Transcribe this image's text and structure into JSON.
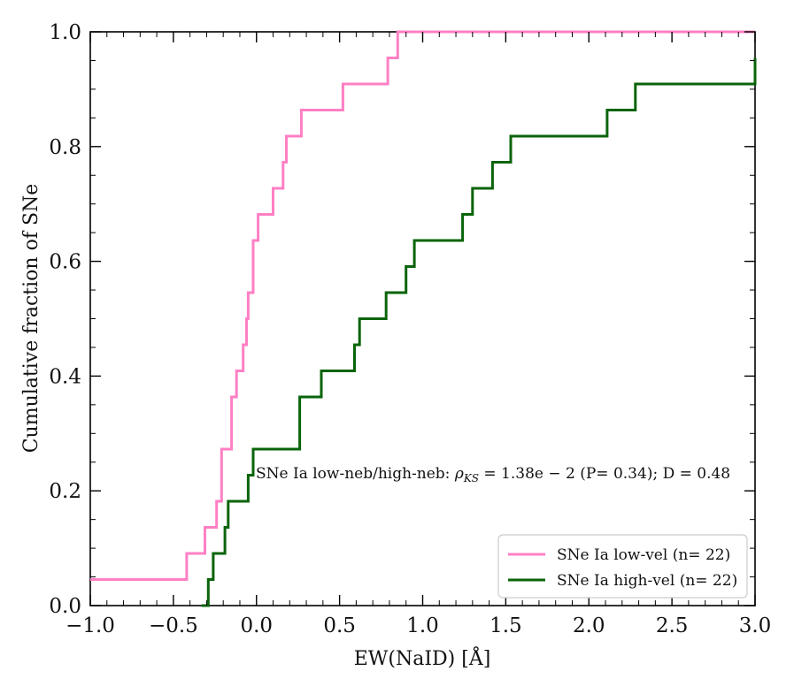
{
  "chart_data": {
    "type": "line",
    "step": true,
    "xlabel": "EW(NaID) [Å]",
    "ylabel": "Cumulative fraction of SNe",
    "xlim": [
      -1.0,
      3.0
    ],
    "ylim": [
      0.0,
      1.0
    ],
    "x_ticks": [
      -1.0,
      -0.5,
      0.0,
      0.5,
      1.0,
      1.5,
      2.0,
      2.5,
      3.0
    ],
    "x_tick_labels": [
      "−1.0",
      "−0.5",
      "0.0",
      "0.5",
      "1.0",
      "1.5",
      "2.0",
      "2.5",
      "3.0"
    ],
    "y_ticks": [
      0.0,
      0.2,
      0.4,
      0.6,
      0.8,
      1.0
    ],
    "y_tick_labels": [
      "0.0",
      "0.2",
      "0.4",
      "0.6",
      "0.8",
      "1.0"
    ],
    "annotation": "SNe Ia low-neb/high-neb: ρKS = 1.38e − 2 (P= 0.34); D = 0.48",
    "series": [
      {
        "name": "SNe Ia low-vel (n= 22)",
        "color": "#ff7fc4",
        "x": [
          -1.0,
          -0.42,
          -0.31,
          -0.24,
          -0.21,
          -0.15,
          -0.12,
          -0.08,
          -0.06,
          -0.05,
          -0.02,
          0.01,
          0.1,
          0.16,
          0.18,
          0.27,
          0.52,
          0.79,
          0.85
        ],
        "y": [
          0.0455,
          0.0909,
          0.1364,
          0.1818,
          0.2727,
          0.3636,
          0.4091,
          0.4545,
          0.5,
          0.5455,
          0.6364,
          0.6818,
          0.7273,
          0.7727,
          0.8182,
          0.8636,
          0.9091,
          0.9545,
          1.0
        ]
      },
      {
        "name": "SNe Ia high-vel (n= 22)",
        "color": "#0a640a",
        "x": [
          -0.33,
          -0.29,
          -0.26,
          -0.19,
          -0.17,
          -0.05,
          -0.02,
          0.26,
          0.39,
          0.59,
          0.62,
          0.78,
          0.9,
          0.95,
          1.24,
          1.3,
          1.42,
          1.53,
          2.11,
          2.28,
          3.0
        ],
        "y": [
          0.0,
          0.0455,
          0.0909,
          0.1364,
          0.1818,
          0.2273,
          0.2727,
          0.3636,
          0.4091,
          0.4545,
          0.5,
          0.5455,
          0.5909,
          0.6364,
          0.6818,
          0.7273,
          0.7727,
          0.8182,
          0.8636,
          0.9091,
          0.9545
        ]
      }
    ],
    "legend_position": "bottom-right"
  },
  "legend": {
    "low_vel_label": "SNe Ia low-vel (n= 22)",
    "high_vel_label": "SNe Ia high-vel (n= 22)"
  },
  "annotation": {
    "prefix": "SNe Ia low-neb/high-neb: ",
    "rho": "ρ",
    "rho_sub": "KS",
    "suffix": " = 1.38e − 2 (P= 0.34); D = 0.48"
  }
}
